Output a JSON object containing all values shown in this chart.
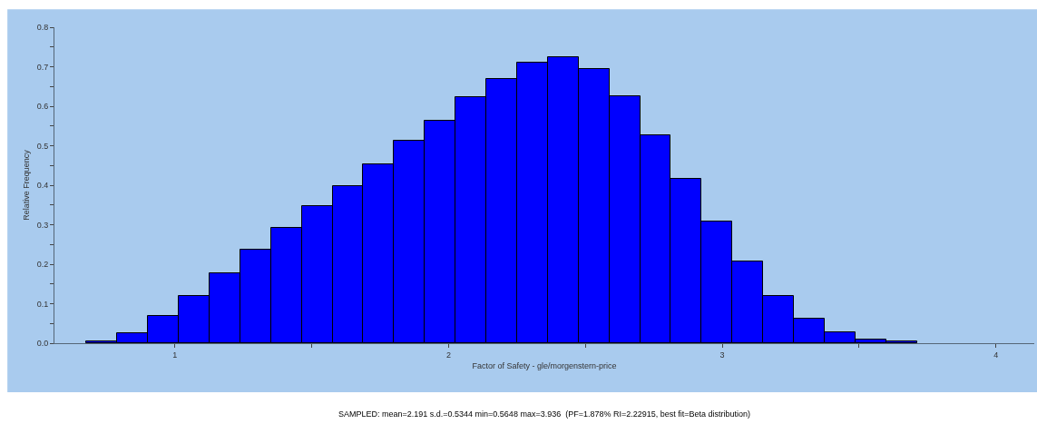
{
  "chart_data": {
    "type": "histogram",
    "xlabel": "Factor of Safety - gle/morgenstern-price",
    "ylabel": "Relative Frequency",
    "bins": [
      0.5648,
      0.6772,
      0.7895,
      0.9019,
      1.0143,
      1.1266,
      1.239,
      1.3514,
      1.4638,
      1.5761,
      1.6885,
      1.8009,
      1.9132,
      2.0256,
      2.138,
      2.2503,
      2.3627,
      2.4751,
      2.5874,
      2.6998,
      2.8122,
      2.9246,
      3.0369,
      3.1493,
      3.2617,
      3.374,
      3.4864,
      3.5988,
      3.7111,
      3.8235,
      3.936
    ],
    "values": [
      0,
      0.005,
      0.025,
      0.068,
      0.12,
      0.177,
      0.236,
      0.291,
      0.347,
      0.397,
      0.452,
      0.512,
      0.563,
      0.624,
      0.67,
      0.711,
      0.725,
      0.695,
      0.626,
      0.527,
      0.417,
      0.307,
      0.206,
      0.12,
      0.063,
      0.028,
      0.01,
      0.005,
      0,
      0
    ],
    "color": "#0000ff",
    "xlim": [
      0.56,
      4.14
    ],
    "xticks": [
      1,
      {
        "value": 1.5,
        "label": null
      },
      2,
      {
        "value": 2.5,
        "label": null
      },
      3,
      {
        "value": 3.5,
        "label": null
      },
      4
    ],
    "ylim": [
      0,
      0.8
    ],
    "yticks": [
      {
        "value": 0,
        "label": "0.0"
      },
      {
        "value": 0.05,
        "label": null
      },
      {
        "value": 0.1,
        "label": "0.1"
      },
      {
        "value": 0.15,
        "label": null
      },
      {
        "value": 0.2,
        "label": "0.2"
      },
      {
        "value": 0.25,
        "label": null
      },
      {
        "value": 0.3,
        "label": "0.3"
      },
      {
        "value": 0.35,
        "label": null
      },
      {
        "value": 0.4,
        "label": "0.4"
      },
      {
        "value": 0.45,
        "label": null
      },
      {
        "value": 0.5,
        "label": "0.5"
      },
      {
        "value": 0.55,
        "label": null
      },
      {
        "value": 0.6,
        "label": "0.6"
      },
      {
        "value": 0.65,
        "label": null
      },
      {
        "value": 0.7,
        "label": "0.7"
      },
      {
        "value": 0.75,
        "label": null
      },
      {
        "value": 0.8,
        "label": "0.8"
      }
    ],
    "grid": false,
    "legend": false,
    "annotations": [
      "SAMPLED: mean=2.191 s.d.=0.5344 min=0.5648 max=3.936  (PF=1.878% RI=2.22915, best fit=Beta distribution)"
    ]
  }
}
